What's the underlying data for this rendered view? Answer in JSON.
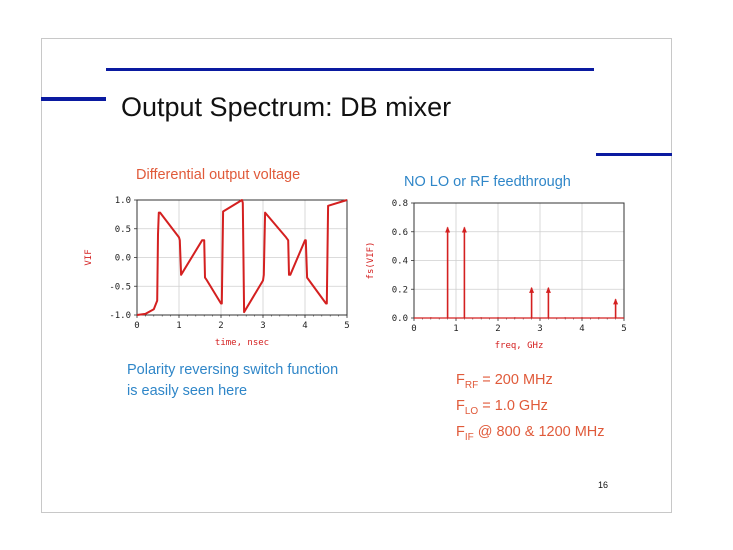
{
  "slide": {
    "title": "Output Spectrum: DB mixer",
    "page_number": "16",
    "accent_color": "#0a1aa0"
  },
  "left_caption": "Differential output voltage",
  "right_caption": "NO LO or RF feedthrough",
  "note": {
    "line1": "Polarity reversing switch function",
    "line2": "is easily seen here"
  },
  "formulas": [
    {
      "sym": "F",
      "sub": "RF",
      "text": " = 200 MHz"
    },
    {
      "sym": "F",
      "sub": "LO",
      "text": " = 1.0 GHz"
    },
    {
      "sym": "F",
      "sub": "IF",
      "text": " @ 800 & 1200 MHz"
    }
  ],
  "chart_data": [
    {
      "type": "line",
      "xlabel": "time, nsec",
      "ylabel": "VIF",
      "xlim": [
        0,
        5
      ],
      "ylim": [
        -1.0,
        1.0
      ],
      "x_ticks": [
        "0",
        "1",
        "2",
        "3",
        "4",
        "5"
      ],
      "y_ticks": [
        "1.0",
        "0.5",
        "0.0",
        "-0.5",
        "-1.0"
      ],
      "grid": true,
      "line_color": "#d42020",
      "series": [
        {
          "x": [
            0,
            0.2,
            0.4,
            0.48,
            0.5,
            0.52,
            0.55,
            1.0,
            1.02,
            1.05,
            1.55,
            1.6,
            1.62,
            1.65,
            2.0,
            2.02,
            2.05,
            2.5,
            2.52,
            2.55,
            3.0,
            3.02,
            3.05,
            3.55,
            3.6,
            3.62,
            3.65,
            4.0,
            4.02,
            4.05,
            4.5,
            4.52,
            4.55,
            5.0
          ],
          "y": [
            -1.0,
            -0.98,
            -0.9,
            -0.75,
            0.4,
            0.78,
            0.78,
            0.35,
            0.3,
            -0.3,
            0.3,
            0.3,
            -0.35,
            -0.38,
            -0.8,
            -0.8,
            0.8,
            1.0,
            0.95,
            -0.95,
            -0.4,
            -0.3,
            0.78,
            0.35,
            0.3,
            -0.3,
            -0.3,
            0.3,
            0.3,
            -0.35,
            -0.8,
            -0.8,
            0.9,
            1.0
          ]
        }
      ]
    },
    {
      "type": "bar",
      "xlabel": "freq, GHz",
      "ylabel": "fs(VIF)",
      "xlim": [
        0,
        5
      ],
      "ylim": [
        0.0,
        0.8
      ],
      "x_ticks": [
        "0",
        "1",
        "2",
        "3",
        "4",
        "5"
      ],
      "y_ticks": [
        "0.8",
        "0.6",
        "0.4",
        "0.2",
        "0.0"
      ],
      "grid": true,
      "line_color": "#d42020",
      "series": [
        {
          "x": [
            0.4,
            0.8,
            1.2,
            1.6,
            2.0,
            2.4,
            2.8,
            3.2,
            3.6,
            4.0,
            4.4,
            4.8
          ],
          "y": [
            0.005,
            0.63,
            0.63,
            0.005,
            0.005,
            0.005,
            0.21,
            0.21,
            0.005,
            0.005,
            0.005,
            0.13
          ],
          "arrow": [
            false,
            true,
            true,
            false,
            false,
            false,
            true,
            true,
            false,
            false,
            false,
            true
          ]
        }
      ]
    }
  ]
}
